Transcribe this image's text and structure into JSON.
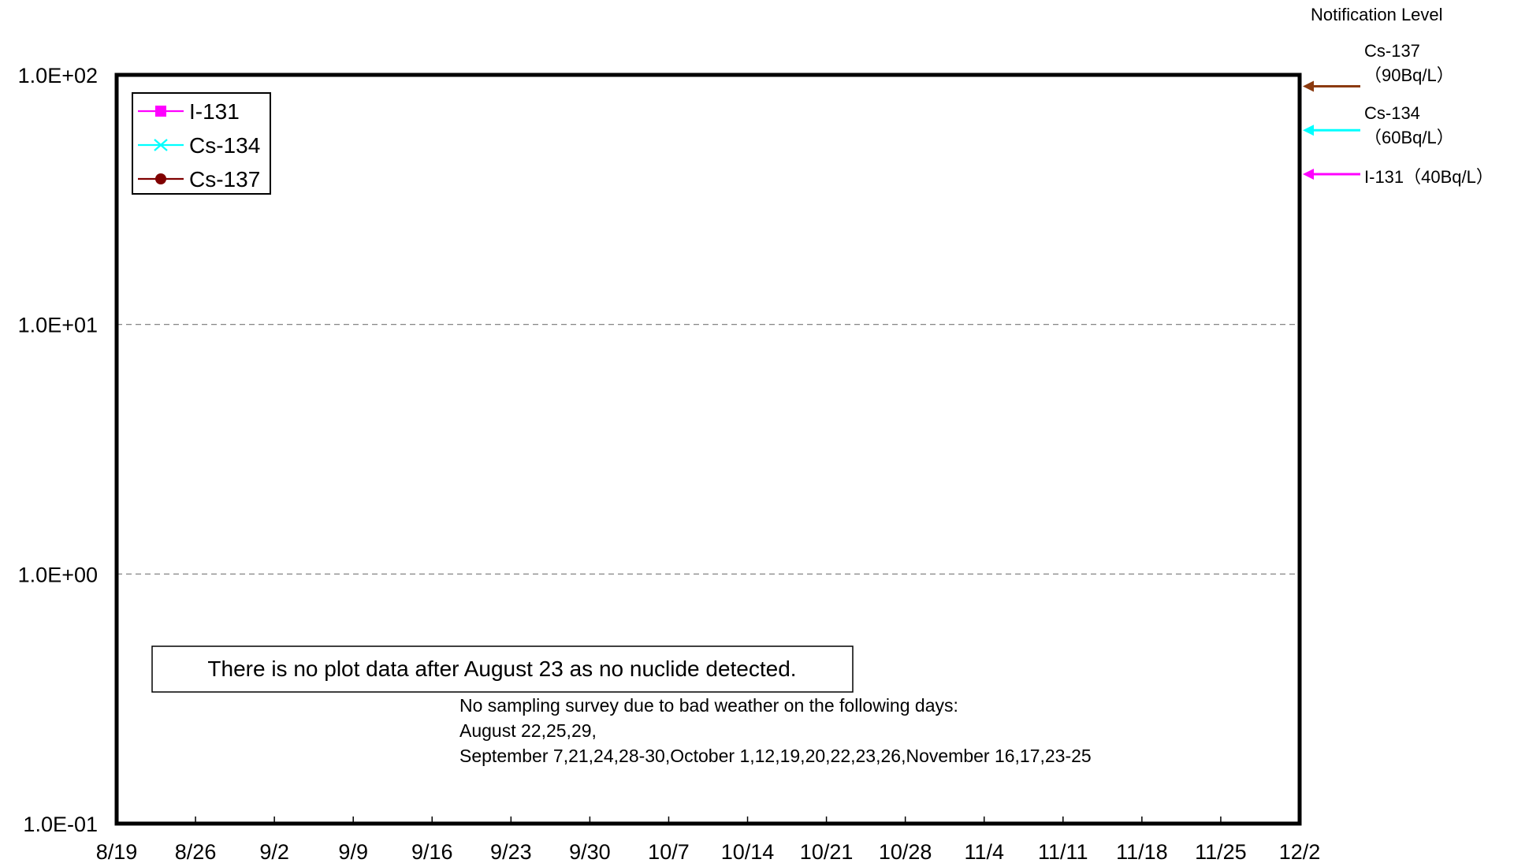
{
  "notification": {
    "title": "Notification Level",
    "levels": [
      {
        "nuclide": "Cs-137",
        "label_lines": [
          "Cs-137",
          "（90Bq/L）"
        ],
        "value": 90,
        "color": "#8B3A0F"
      },
      {
        "nuclide": "Cs-134",
        "label_lines": [
          "Cs-134",
          "（60Bq/L）"
        ],
        "value": 60,
        "color": "#00FFFF"
      },
      {
        "nuclide": "I-131",
        "label_lines": [
          "I-131（40Bq/L）"
        ],
        "value": 40,
        "color": "#FF00FF"
      }
    ]
  },
  "annotations": {
    "no_data_box": "There is no plot data after August 23 as no nuclide detected.",
    "bad_weather_lines": [
      "No sampling survey due to bad weather on the following days:",
      "August 22,25,29,",
      "September 7,21,24,28-30,October 1,12,19,20,22,23,26,November 16,17,23-25"
    ]
  },
  "chart_data": {
    "type": "line",
    "title": "",
    "xlabel": "",
    "ylabel": "",
    "x_categories": [
      "8/19",
      "8/26",
      "9/2",
      "9/9",
      "9/16",
      "9/23",
      "9/30",
      "10/7",
      "10/14",
      "10/21",
      "10/28",
      "11/4",
      "11/11",
      "11/18",
      "11/25",
      "12/2"
    ],
    "y_scale": "log",
    "ylim": [
      0.1,
      100
    ],
    "y_ticks": [
      {
        "value": 100,
        "label": "1.0E+02"
      },
      {
        "value": 10,
        "label": "1.0E+01"
      },
      {
        "value": 1,
        "label": "1.0E+00"
      },
      {
        "value": 0.1,
        "label": "1.0E-01"
      }
    ],
    "grid": "horizontal dashed",
    "legend_position": "top-left",
    "series": [
      {
        "name": "I-131",
        "color": "#FF00FF",
        "marker": "square",
        "values": []
      },
      {
        "name": "Cs-134",
        "color": "#00FFFF",
        "marker": "x",
        "values": []
      },
      {
        "name": "Cs-137",
        "color": "#800000",
        "marker": "circle",
        "values": []
      }
    ]
  }
}
